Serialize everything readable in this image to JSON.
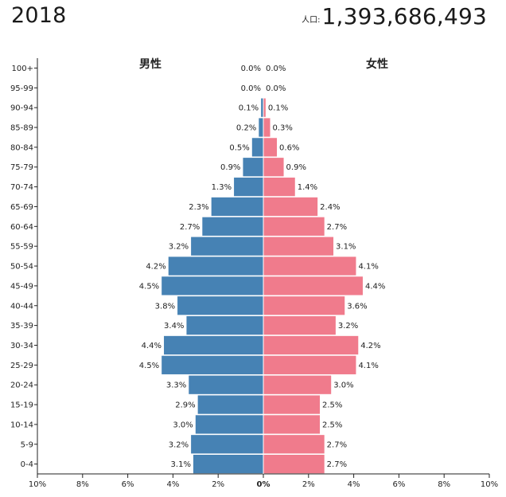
{
  "header": {
    "year": "2018",
    "population_label": "人口:",
    "population_value": "1,393,686,493"
  },
  "colors": {
    "male": "#4682b4",
    "female": "#f07b8c"
  },
  "chart_data": {
    "type": "bar",
    "orientation": "horizontal",
    "layout": "population-pyramid",
    "left_title": "男性",
    "right_title": "女性",
    "categories": [
      "100+",
      "95-99",
      "90-94",
      "85-89",
      "80-84",
      "75-79",
      "70-74",
      "65-69",
      "60-64",
      "55-59",
      "50-54",
      "45-49",
      "40-44",
      "35-39",
      "30-34",
      "25-29",
      "20-24",
      "15-19",
      "10-14",
      "5-9",
      "0-4"
    ],
    "series": [
      {
        "name": "男性",
        "values": [
          0.0,
          0.0,
          0.1,
          0.2,
          0.5,
          0.9,
          1.3,
          2.3,
          2.7,
          3.2,
          4.2,
          4.5,
          3.8,
          3.4,
          4.4,
          4.5,
          3.3,
          2.9,
          3.0,
          3.2,
          3.1
        ]
      },
      {
        "name": "女性",
        "values": [
          0.0,
          0.0,
          0.1,
          0.3,
          0.6,
          0.9,
          1.4,
          2.4,
          2.7,
          3.1,
          4.1,
          4.4,
          3.6,
          3.2,
          4.2,
          4.1,
          3.0,
          2.5,
          2.5,
          2.7,
          2.7
        ]
      }
    ],
    "labels_male": [
      "0.0%",
      "0.0%",
      "0.1%",
      "0.2%",
      "0.5%",
      "0.9%",
      "1.3%",
      "2.3%",
      "2.7%",
      "3.2%",
      "4.2%",
      "4.5%",
      "3.8%",
      "3.4%",
      "4.4%",
      "4.5%",
      "3.3%",
      "2.9%",
      "3.0%",
      "3.2%",
      "3.1%"
    ],
    "labels_female": [
      "0.0%",
      "0.0%",
      "0.1%",
      "0.3%",
      "0.6%",
      "0.9%",
      "1.4%",
      "2.4%",
      "2.7%",
      "3.1%",
      "4.1%",
      "4.4%",
      "3.6%",
      "3.2%",
      "4.2%",
      "4.1%",
      "3.0%",
      "2.5%",
      "2.5%",
      "2.7%",
      "2.7%"
    ],
    "x_range": [
      -10,
      10
    ],
    "x_tick_values": [
      -10,
      -8,
      -6,
      -4,
      -2,
      0,
      2,
      4,
      6,
      8,
      10
    ],
    "x_tick_labels": [
      "10%",
      "8%",
      "6%",
      "4%",
      "2%",
      "0%",
      "2%",
      "4%",
      "6%",
      "8%",
      "10%"
    ],
    "grid": false
  }
}
